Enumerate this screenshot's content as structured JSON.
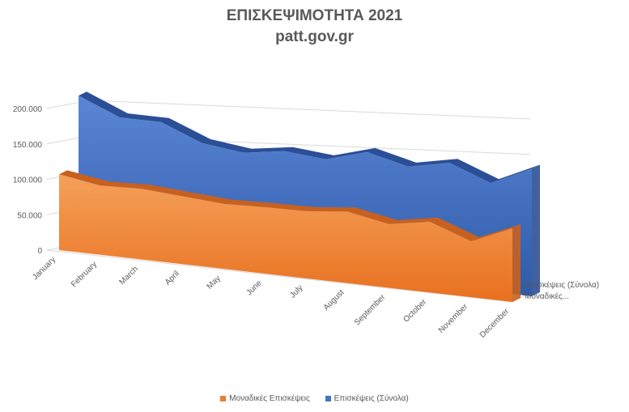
{
  "chart_data": {
    "type": "area",
    "title": "ΕΠΙΣΚΕΨΙΜΟΤΗΤΑ 2021",
    "subtitle": "patt.gov.gr",
    "categories": [
      "January",
      "February",
      "March",
      "April",
      "May",
      "June",
      "July",
      "August",
      "September",
      "October",
      "November",
      "December"
    ],
    "y_ticks": [
      "0",
      "50.000",
      "100.000",
      "150.000",
      "200.000"
    ],
    "ylim": [
      0,
      200000
    ],
    "series": [
      {
        "name": "Μοναδικές Επισκέψεις",
        "color": "#ED7D31",
        "values": [
          107000,
          98000,
          100000,
          96000,
          92000,
          94000,
          95000,
          101000,
          90000,
          100000,
          79000,
          104000
        ]
      },
      {
        "name": "Επισκέψεις (Σύνολα)",
        "color": "#4472C4",
        "values": [
          210000,
          186000,
          186000,
          163000,
          156000,
          165000,
          160000,
          177000,
          163000,
          175000,
          153000,
          180000
        ]
      }
    ],
    "depth_labels": [
      "Επισκέψεις (Σύνολα)",
      "Μοναδικές..."
    ],
    "legend_position": "bottom",
    "grid": true
  }
}
